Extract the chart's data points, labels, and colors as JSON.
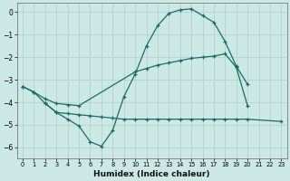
{
  "xlabel": "Humidex (Indice chaleur)",
  "xlim": [
    -0.5,
    23.5
  ],
  "ylim": [
    -6.5,
    0.4
  ],
  "yticks": [
    0,
    -1,
    -2,
    -3,
    -4,
    -5,
    -6
  ],
  "xticks": [
    0,
    1,
    2,
    3,
    4,
    5,
    6,
    7,
    8,
    9,
    10,
    11,
    12,
    13,
    14,
    15,
    16,
    17,
    18,
    19,
    20,
    21,
    22,
    23
  ],
  "background_color": "#cce8e4",
  "grid_color": "#aecfcc",
  "line_color": "#1a6b62",
  "line1_x": [
    0,
    1,
    2,
    3,
    4,
    5,
    6,
    7,
    8,
    9,
    10,
    11,
    12,
    13,
    14,
    15,
    16,
    17,
    18,
    19,
    20
  ],
  "line1_y": [
    -3.3,
    -3.55,
    -4.05,
    -4.45,
    -4.75,
    -5.05,
    -5.75,
    -5.95,
    -5.25,
    -3.75,
    -2.75,
    -1.5,
    -0.6,
    -0.05,
    0.1,
    0.15,
    -0.15,
    -0.45,
    -1.3,
    -2.4,
    -3.2
  ],
  "line2_x": [
    0,
    1,
    2,
    3,
    4,
    5,
    10,
    11,
    12,
    13,
    14,
    15,
    16,
    17,
    18,
    19,
    20
  ],
  "line2_y": [
    -3.3,
    -3.55,
    -3.85,
    -4.05,
    -4.1,
    -4.15,
    -2.65,
    -2.5,
    -2.35,
    -2.25,
    -2.15,
    -2.05,
    -2.0,
    -1.95,
    -1.85,
    -2.45,
    -4.15
  ],
  "line3_x": [
    2,
    3,
    4,
    5,
    6,
    7,
    8,
    9,
    10,
    11,
    12,
    13,
    14,
    15,
    16,
    17,
    18,
    19,
    20,
    23
  ],
  "line3_y": [
    -4.05,
    -4.45,
    -4.5,
    -4.55,
    -4.6,
    -4.65,
    -4.7,
    -4.75,
    -4.75,
    -4.75,
    -4.75,
    -4.75,
    -4.75,
    -4.75,
    -4.75,
    -4.75,
    -4.75,
    -4.75,
    -4.75,
    -4.85
  ]
}
